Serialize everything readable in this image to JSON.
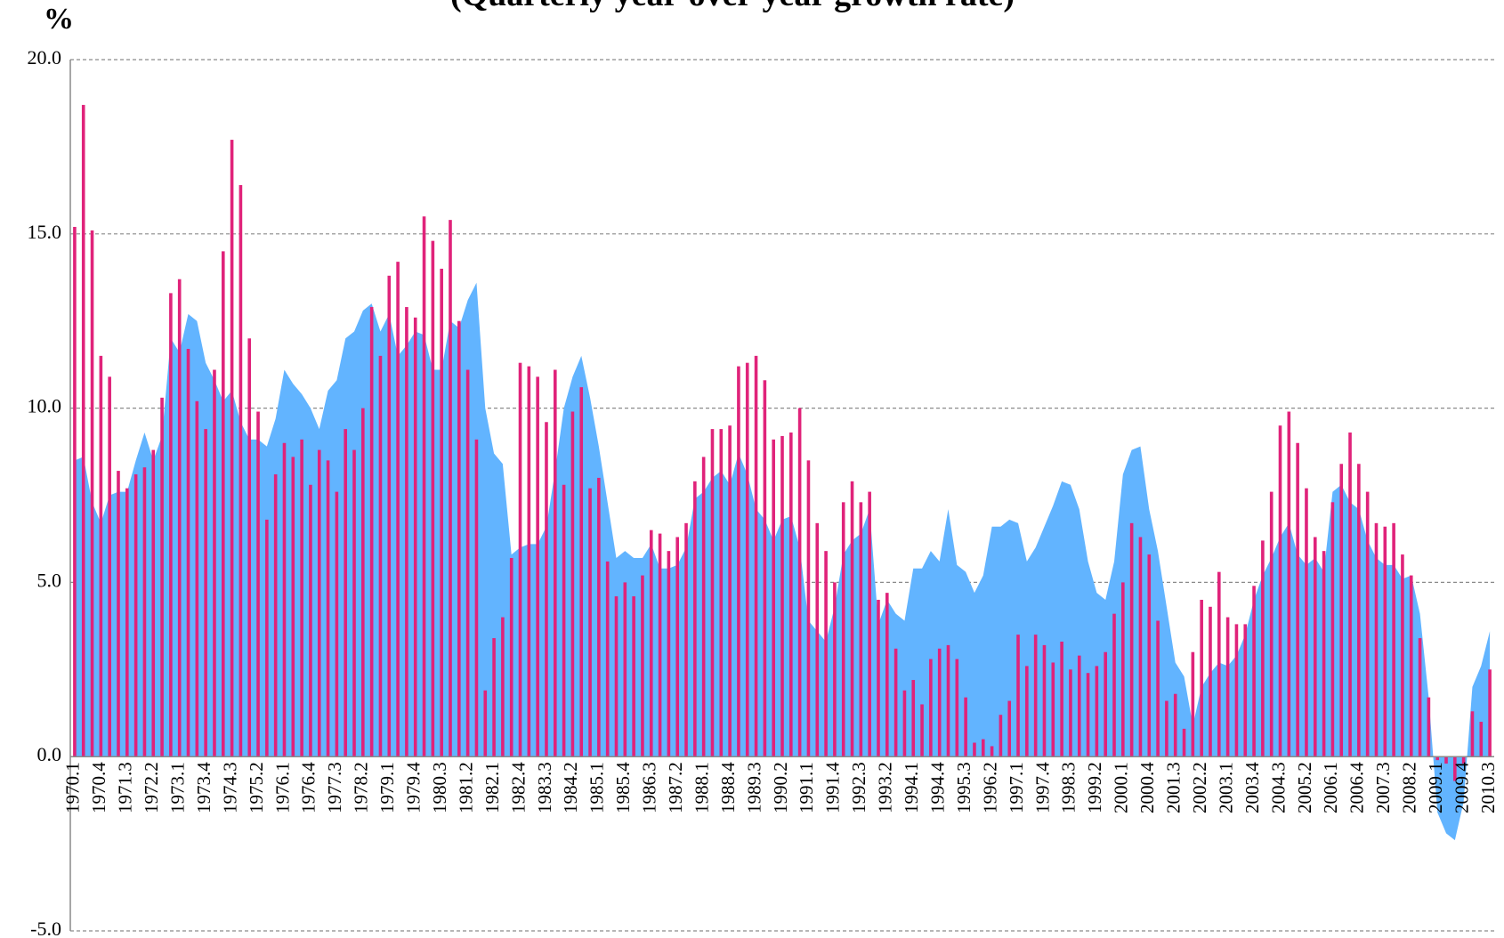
{
  "chart_data": {
    "type": "bar-area",
    "title": "(Quarterly year-over-year growth rate)",
    "y_label": "%",
    "categories": [
      "1970.1",
      null,
      null,
      "1970.4",
      null,
      null,
      "1971.3",
      null,
      null,
      "1972.2",
      null,
      null,
      "1973.1",
      null,
      null,
      "1973.4",
      null,
      null,
      "1974.3",
      null,
      null,
      "1975.2",
      null,
      null,
      "1976.1",
      null,
      null,
      "1976.4",
      null,
      null,
      "1977.3",
      null,
      null,
      "1978.2",
      null,
      null,
      "1979.1",
      null,
      null,
      "1979.4",
      null,
      null,
      "1980.3",
      null,
      null,
      "1981.2",
      null,
      null,
      "1982.1",
      null,
      null,
      "1982.4",
      null,
      null,
      "1983.3",
      null,
      null,
      "1984.2",
      null,
      null,
      "1985.1",
      null,
      null,
      "1985.4",
      null,
      null,
      "1986.3",
      null,
      null,
      "1987.2",
      null,
      null,
      "1988.1",
      null,
      null,
      "1988.4",
      null,
      null,
      "1989.3",
      null,
      null,
      "1990.2",
      null,
      null,
      "1991.1",
      null,
      null,
      "1991.4",
      null,
      null,
      "1992.3",
      null,
      null,
      "1993.2",
      null,
      null,
      "1994.1",
      null,
      null,
      "1994.4",
      null,
      null,
      "1995.3",
      null,
      null,
      "1996.2",
      null,
      null,
      "1997.1",
      null,
      null,
      "1997.4",
      null,
      null,
      "1998.3",
      null,
      null,
      "1999.2",
      null,
      null,
      "2000.1",
      null,
      null,
      "2000.4",
      null,
      null,
      "2001.3",
      null,
      null,
      "2002.2",
      null,
      null,
      "2003.1",
      null,
      null,
      "2003.4",
      null,
      null,
      "2004.3",
      null,
      null,
      "2005.2",
      null,
      null,
      "2006.1",
      null,
      null,
      "2006.4",
      null,
      null,
      "2007.3",
      null,
      null,
      "2008.2",
      null,
      null,
      "2009.1",
      null,
      null,
      "2009.4",
      null,
      null,
      "2010.3"
    ],
    "series": [
      {
        "type": "area",
        "color": "#62b4ff",
        "values": [
          8.5,
          8.6,
          7.3,
          6.7,
          7.5,
          7.6,
          7.6,
          8.5,
          9.3,
          8.5,
          9.2,
          12.0,
          11.6,
          12.7,
          12.5,
          11.3,
          10.8,
          10.2,
          10.5,
          9.6,
          9.1,
          9.1,
          8.9,
          9.7,
          11.1,
          10.7,
          10.4,
          10.0,
          9.4,
          10.5,
          10.8,
          12.0,
          12.2,
          12.8,
          13.0,
          12.2,
          12.7,
          11.5,
          11.8,
          12.2,
          12.1,
          11.1,
          11.1,
          12.5,
          12.3,
          13.1,
          13.6,
          10.0,
          8.7,
          8.4,
          5.8,
          6.0,
          6.1,
          6.1,
          6.6,
          8.2,
          10.0,
          10.9,
          11.5,
          10.3,
          8.9,
          7.3,
          5.7,
          5.9,
          5.7,
          5.7,
          6.1,
          5.4,
          5.4,
          5.5,
          6.0,
          7.4,
          7.6,
          8.0,
          8.2,
          7.8,
          8.7,
          8.1,
          7.1,
          6.8,
          6.2,
          6.8,
          6.9,
          6.0,
          3.9,
          3.6,
          3.3,
          4.3,
          5.8,
          6.2,
          6.4,
          7.1,
          3.8,
          4.5,
          4.1,
          3.9,
          5.4,
          5.4,
          5.9,
          5.6,
          7.1,
          5.5,
          5.3,
          4.7,
          5.2,
          6.6,
          6.6,
          6.8,
          6.7,
          5.6,
          6.0,
          6.6,
          7.2,
          7.9,
          7.8,
          7.1,
          5.6,
          4.7,
          4.5,
          5.6,
          8.1,
          8.8,
          8.9,
          7.1,
          5.9,
          4.3,
          2.7,
          2.3,
          0.9,
          2.0,
          2.4,
          2.7,
          2.6,
          2.9,
          3.5,
          4.5,
          5.2,
          5.7,
          6.3,
          6.7,
          5.8,
          5.5,
          5.7,
          5.3,
          7.6,
          7.8,
          7.3,
          7.1,
          6.2,
          5.7,
          5.5,
          5.5,
          5.1,
          5.2,
          4.1,
          1.7,
          -1.6,
          -2.2,
          -2.4,
          -1.3,
          2.0,
          2.6,
          3.6
        ]
      },
      {
        "type": "bar",
        "color": "#e0237a",
        "values": [
          15.2,
          18.7,
          15.1,
          11.5,
          10.9,
          8.2,
          7.7,
          8.1,
          8.3,
          8.8,
          10.3,
          13.3,
          13.7,
          11.7,
          10.2,
          9.4,
          11.1,
          14.5,
          17.7,
          16.4,
          12.0,
          9.9,
          6.8,
          8.1,
          9.0,
          8.6,
          9.1,
          7.8,
          8.8,
          8.5,
          7.6,
          9.4,
          8.8,
          10.0,
          12.9,
          11.5,
          13.8,
          14.2,
          12.9,
          12.6,
          15.5,
          14.8,
          14.0,
          15.4,
          12.5,
          11.1,
          9.1,
          1.9,
          3.4,
          4.0,
          5.7,
          11.3,
          11.2,
          10.9,
          9.6,
          11.1,
          7.8,
          9.9,
          10.6,
          7.7,
          8.0,
          5.6,
          4.6,
          5.0,
          4.6,
          5.2,
          6.5,
          6.4,
          5.9,
          6.3,
          6.7,
          7.9,
          8.6,
          9.4,
          9.4,
          9.5,
          11.2,
          11.3,
          11.5,
          10.8,
          9.1,
          9.2,
          9.3,
          10.0,
          8.5,
          6.7,
          5.9,
          5.0,
          7.3,
          7.9,
          7.3,
          7.6,
          4.5,
          4.7,
          3.1,
          1.9,
          2.2,
          1.5,
          2.8,
          3.1,
          3.2,
          2.8,
          1.7,
          0.4,
          0.5,
          0.3,
          1.2,
          1.6,
          3.5,
          2.6,
          3.5,
          3.2,
          2.7,
          3.3,
          2.5,
          2.9,
          2.4,
          2.6,
          3.0,
          4.1,
          5.0,
          6.7,
          6.3,
          5.8,
          3.9,
          1.6,
          1.8,
          0.8,
          3.0,
          4.5,
          4.3,
          5.3,
          4.0,
          3.8,
          3.8,
          4.9,
          6.2,
          7.6,
          9.5,
          9.9,
          9.0,
          7.7,
          6.3,
          5.9,
          7.3,
          8.4,
          9.3,
          8.4,
          7.6,
          6.7,
          6.6,
          6.7,
          5.8,
          5.2,
          3.4,
          1.7,
          -0.1,
          -0.2,
          -0.7,
          -0.2,
          1.3,
          1.0,
          2.5
        ]
      }
    ],
    "ylim": [
      -5,
      20
    ],
    "yticks": [
      {
        "value": -5,
        "label": "-5.0"
      },
      {
        "value": 0,
        "label": "0.0"
      },
      {
        "value": 5,
        "label": "5.0"
      },
      {
        "value": 10,
        "label": "10.0"
      },
      {
        "value": 15,
        "label": "15.0"
      },
      {
        "value": 20,
        "label": "20.0"
      }
    ],
    "grid": true
  }
}
